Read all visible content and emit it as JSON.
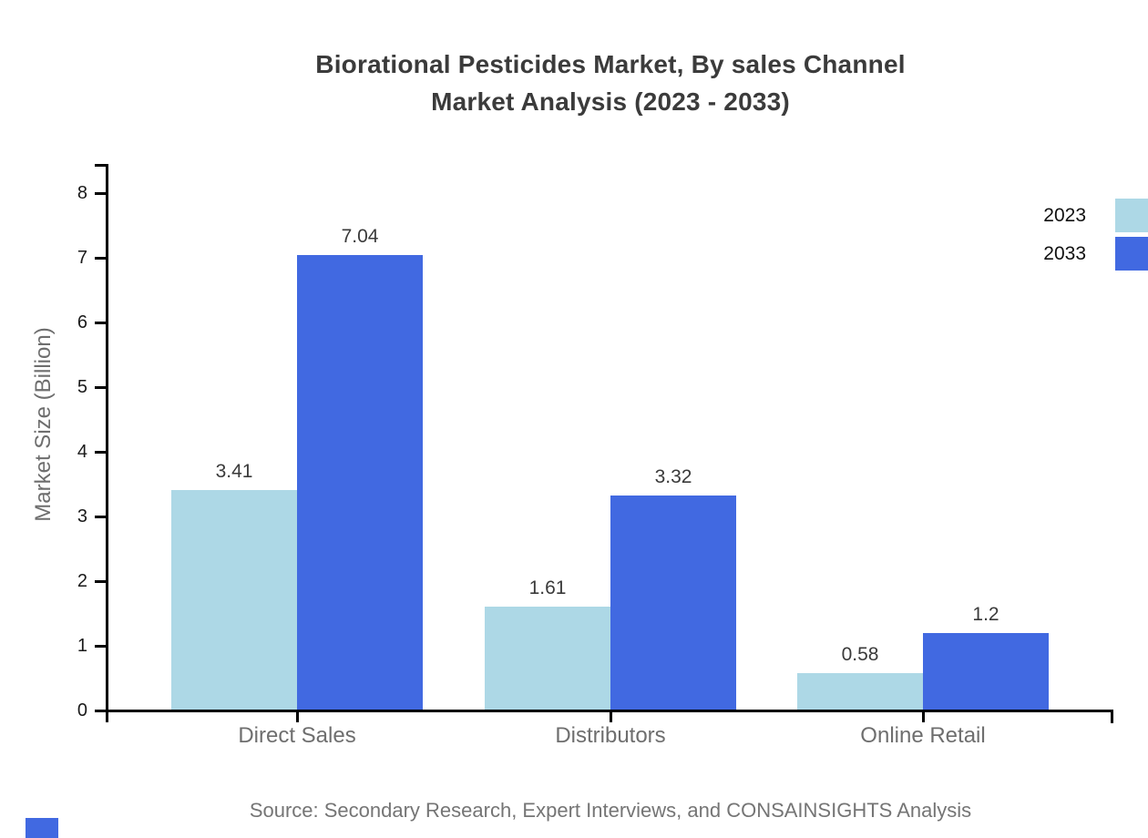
{
  "title": {
    "line1": "Biorational Pesticides Market, By sales Channel",
    "line2": "Market Analysis (2023 - 2033)"
  },
  "chart_data": {
    "type": "bar",
    "categories": [
      "Direct Sales",
      "Distributors",
      "Online Retail"
    ],
    "series": [
      {
        "name": "2023",
        "color": "#ADD8E6",
        "values": [
          3.41,
          1.61,
          0.58
        ]
      },
      {
        "name": "2033",
        "color": "#4169E1",
        "values": [
          7.04,
          3.32,
          1.2
        ]
      }
    ],
    "title": "Biorational Pesticides Market, By sales Channel Market Analysis (2023 - 2033)",
    "xlabel": "",
    "ylabel": "Market Size (Billion)",
    "ylim": [
      0,
      8.45
    ],
    "y_ticks": [
      0,
      1,
      2,
      3,
      4,
      5,
      6,
      7,
      8
    ],
    "grid": false,
    "legend_position": "top-right",
    "bar_value_labels": [
      "3.41",
      "7.04",
      "1.61",
      "3.32",
      "0.58",
      "1.2"
    ]
  },
  "legend": {
    "items": [
      {
        "label": "2023",
        "color": "#ADD8E6"
      },
      {
        "label": "2033",
        "color": "#4169E1"
      }
    ]
  },
  "source": "Source: Secondary Research, Expert Interviews, and CONSAINSIGHTS Analysis",
  "colors": {
    "series_2023": "#ADD8E6",
    "series_2033": "#4169E1",
    "axis": "#000000",
    "title_text": "#3b3b3b",
    "muted_text": "#6e6e6e",
    "value_text": "#3a3a3a",
    "watermark": "#4169E1"
  }
}
